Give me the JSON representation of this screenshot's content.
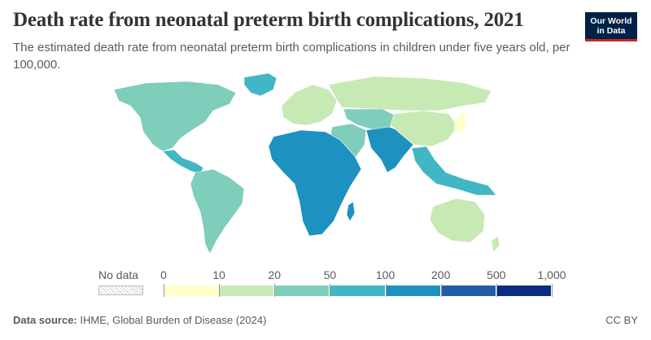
{
  "header": {
    "title": "Death rate from neonatal preterm birth complications, 2021",
    "subtitle": "The estimated death rate from neonatal preterm birth complications in children under five years old, per 100,000."
  },
  "logo": {
    "line1": "Our World",
    "line2": "in Data"
  },
  "legend": {
    "no_data_label": "No data",
    "ticks": [
      "0",
      "10",
      "20",
      "50",
      "100",
      "200",
      "500",
      "1,000"
    ],
    "bins": [
      {
        "range": "0–10",
        "color": "#ffffcc"
      },
      {
        "range": "10–20",
        "color": "#c7e9b4"
      },
      {
        "range": "20–50",
        "color": "#7fcdbb"
      },
      {
        "range": "50–100",
        "color": "#41b6c4"
      },
      {
        "range": "100–200",
        "color": "#1d91c0"
      },
      {
        "range": "200–500",
        "color": "#225ea8"
      },
      {
        "range": "500–1,000",
        "color": "#0c2c84"
      }
    ]
  },
  "map_regions": {
    "north_america": {
      "name": "North America",
      "color": "#7fcdbb"
    },
    "greenland": {
      "name": "Greenland",
      "color": "#41b6c4"
    },
    "central_america": {
      "name": "Central America",
      "color": "#41b6c4"
    },
    "south_america": {
      "name": "South America",
      "color": "#7fcdbb"
    },
    "europe": {
      "name": "Europe",
      "color": "#c7e9b4"
    },
    "russia": {
      "name": "Russia",
      "color": "#c7e9b4"
    },
    "africa": {
      "name": "Africa",
      "color": "#1d91c0"
    },
    "middle_east": {
      "name": "Middle East",
      "color": "#7fcdbb"
    },
    "central_asia": {
      "name": "Central Asia",
      "color": "#7fcdbb"
    },
    "south_asia": {
      "name": "South Asia",
      "color": "#1d91c0"
    },
    "china": {
      "name": "China",
      "color": "#c7e9b4"
    },
    "southeast_asia": {
      "name": "Southeast Asia",
      "color": "#41b6c4"
    },
    "australia": {
      "name": "Australia",
      "color": "#c7e9b4"
    },
    "japan": {
      "name": "Japan",
      "color": "#ffffcc"
    }
  },
  "footer": {
    "source_label": "Data source:",
    "source_text": "IHME, Global Burden of Disease (2024)",
    "license": "CC BY"
  }
}
